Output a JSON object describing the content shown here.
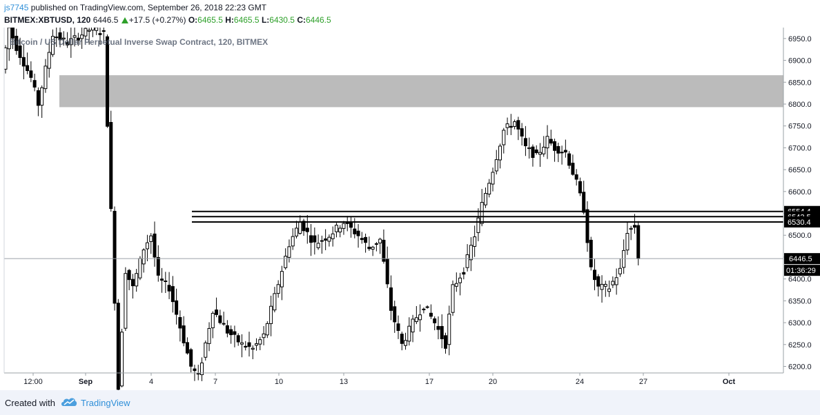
{
  "header": {
    "user": "js7745",
    "published_text": " published on TradingView.com, September 26, 2018 22:23 GMT",
    "symbol": "BITMEX:XBTUSD, 120",
    "last": "6446.5",
    "change": "+17.5 (+0.27%)",
    "open_label": "O:",
    "open": "6465.5",
    "high_label": "H:",
    "high": "6465.5",
    "low_label": "L:",
    "low": "6430.5",
    "close_label": "C:",
    "close": "6446.5"
  },
  "footer": {
    "created_with": "Created with",
    "brand": "TradingView",
    "logo_icon": "tradingview-cloud-icon"
  },
  "colors": {
    "candle": "#000000",
    "zone": "#bbbbbb",
    "axis_text": "#131722",
    "link": "#2f8fd8",
    "up": "#2ea02a"
  },
  "chart_data": {
    "type": "candlestick",
    "title": "Bitcoin / US Dollar Perpetual Inverse Swap Contract, 120, BITMEX",
    "xlabel": "",
    "ylabel": "",
    "ylim": [
      6185,
      6975
    ],
    "y_ticks": [
      6200,
      6250,
      6300,
      6350,
      6400,
      6450,
      6500,
      6550,
      6600,
      6650,
      6700,
      6750,
      6800,
      6850,
      6900,
      6950
    ],
    "x_ticks": [
      "12:00",
      "Sep",
      "4",
      "7",
      "10",
      "13",
      "17",
      "20",
      "24",
      "27",
      "Oct"
    ],
    "grid": false,
    "supply_zone": {
      "low": 6793,
      "high": 6866
    },
    "horizontal_lines": [
      {
        "price": 6554.4,
        "label": "6554.4"
      },
      {
        "price": 6542.5,
        "label": "6542.5"
      },
      {
        "price": 6530.4,
        "label": "6530.4"
      }
    ],
    "current_price": {
      "price": 6446.5,
      "label": "6446.5",
      "countdown": "01:36:29"
    },
    "path": [
      [
        0,
        6880
      ],
      [
        2,
        6975
      ],
      [
        4,
        6930
      ],
      [
        8,
        6860
      ],
      [
        10,
        6800
      ],
      [
        14,
        6960
      ],
      [
        18,
        6940
      ],
      [
        22,
        6960
      ],
      [
        25,
        6975
      ],
      [
        28,
        6960
      ],
      [
        32,
        6150
      ],
      [
        34,
        6420
      ],
      [
        36,
        6380
      ],
      [
        39,
        6470
      ],
      [
        41,
        6500
      ],
      [
        43,
        6400
      ],
      [
        46,
        6380
      ],
      [
        52,
        6200
      ],
      [
        54,
        6175
      ],
      [
        58,
        6330
      ],
      [
        62,
        6280
      ],
      [
        66,
        6250
      ],
      [
        69,
        6240
      ],
      [
        72,
        6270
      ],
      [
        75,
        6360
      ],
      [
        79,
        6480
      ],
      [
        82,
        6530
      ],
      [
        86,
        6480
      ],
      [
        90,
        6500
      ],
      [
        94,
        6530
      ],
      [
        98,
        6500
      ],
      [
        101,
        6470
      ],
      [
        104,
        6490
      ],
      [
        107,
        6330
      ],
      [
        110,
        6250
      ],
      [
        113,
        6300
      ],
      [
        116,
        6340
      ],
      [
        119,
        6300
      ],
      [
        122,
        6250
      ],
      [
        124,
        6380
      ],
      [
        127,
        6420
      ],
      [
        130,
        6500
      ],
      [
        132,
        6570
      ],
      [
        135,
        6650
      ],
      [
        138,
        6740
      ],
      [
        141,
        6760
      ],
      [
        144,
        6700
      ],
      [
        147,
        6680
      ],
      [
        150,
        6720
      ],
      [
        152,
        6700
      ],
      [
        155,
        6690
      ],
      [
        158,
        6620
      ],
      [
        160,
        6560
      ],
      [
        162,
        6420
      ],
      [
        164,
        6380
      ],
      [
        167,
        6380
      ],
      [
        170,
        6420
      ],
      [
        172,
        6510
      ],
      [
        174,
        6520
      ],
      [
        175,
        6446.5
      ]
    ]
  }
}
